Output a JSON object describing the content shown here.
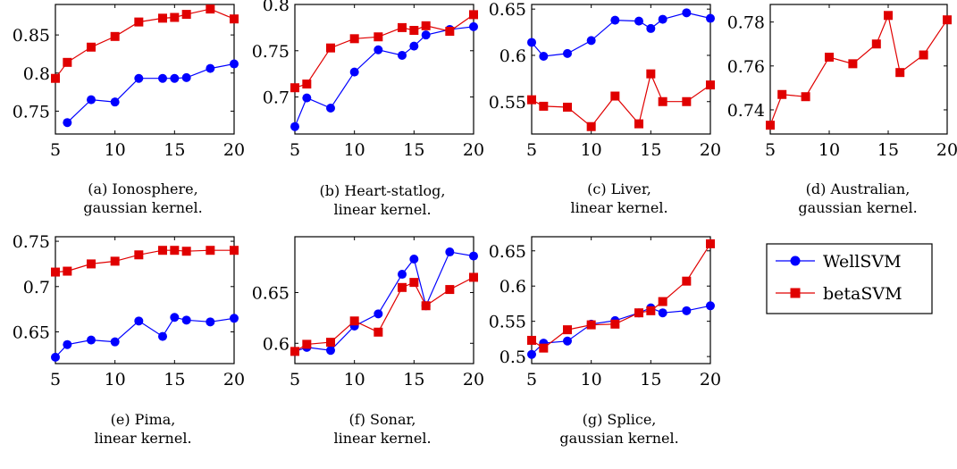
{
  "legend": [
    {
      "name": "WellSVM",
      "color": "#0000ff",
      "marker": "circle"
    },
    {
      "name": "betaSVM",
      "color": "#e00000",
      "marker": "square"
    }
  ],
  "chart_data": [
    {
      "type": "line",
      "caption": [
        "(a) Ionosphere,",
        "gaussian kernel."
      ],
      "xlim": [
        5,
        20
      ],
      "ylim": [
        0.72,
        0.89
      ],
      "xticks": [
        5,
        10,
        15,
        20
      ],
      "yticks": [
        0.75,
        0.8,
        0.85
      ],
      "xtick_labels": [
        "5",
        "10",
        "15",
        "20"
      ],
      "ytick_labels": [
        "0.75",
        "0.8",
        "0.85"
      ],
      "series": [
        {
          "name": "WellSVM",
          "x": [
            6,
            8,
            10,
            12,
            14,
            15,
            16,
            18,
            20
          ],
          "y": [
            0.735,
            0.765,
            0.762,
            0.793,
            0.793,
            0.793,
            0.794,
            0.806,
            0.812
          ]
        },
        {
          "name": "betaSVM",
          "x": [
            5,
            6,
            8,
            10,
            12,
            14,
            15,
            16,
            18,
            20
          ],
          "y": [
            0.793,
            0.814,
            0.834,
            0.848,
            0.867,
            0.872,
            0.873,
            0.877,
            0.884,
            0.871
          ]
        }
      ]
    },
    {
      "type": "line",
      "caption": [
        "(b) Heart-statlog,",
        "linear kernel."
      ],
      "xlim": [
        5,
        20
      ],
      "ylim": [
        0.66,
        0.8
      ],
      "xticks": [
        5,
        10,
        15,
        20
      ],
      "yticks": [
        0.7,
        0.75,
        0.8
      ],
      "xtick_labels": [
        "5",
        "10",
        "15",
        "20"
      ],
      "ytick_labels": [
        "0.7",
        "0.75",
        "0.8"
      ],
      "series": [
        {
          "name": "WellSVM",
          "x": [
            5,
            6,
            8,
            10,
            12,
            14,
            15,
            16,
            18,
            20
          ],
          "y": [
            0.668,
            0.699,
            0.688,
            0.727,
            0.751,
            0.745,
            0.755,
            0.767,
            0.773,
            0.776
          ]
        },
        {
          "name": "betaSVM",
          "x": [
            5,
            6,
            8,
            10,
            12,
            14,
            15,
            16,
            18,
            20
          ],
          "y": [
            0.71,
            0.714,
            0.753,
            0.763,
            0.765,
            0.775,
            0.772,
            0.777,
            0.771,
            0.789
          ]
        }
      ]
    },
    {
      "type": "line",
      "caption": [
        "(c) Liver,",
        "linear kernel."
      ],
      "xlim": [
        5,
        20
      ],
      "ylim": [
        0.515,
        0.655
      ],
      "xticks": [
        5,
        10,
        15,
        20
      ],
      "yticks": [
        0.55,
        0.6,
        0.65
      ],
      "xtick_labels": [
        "5",
        "10",
        "15",
        "20"
      ],
      "ytick_labels": [
        "0.55",
        "0.6",
        "0.65"
      ],
      "series": [
        {
          "name": "WellSVM",
          "x": [
            5,
            6,
            8,
            10,
            12,
            14,
            15,
            16,
            18,
            20
          ],
          "y": [
            0.614,
            0.599,
            0.602,
            0.616,
            0.638,
            0.637,
            0.629,
            0.639,
            0.646,
            0.64
          ]
        },
        {
          "name": "betaSVM",
          "x": [
            5,
            6,
            8,
            10,
            12,
            14,
            15,
            16,
            18,
            20
          ],
          "y": [
            0.552,
            0.545,
            0.544,
            0.523,
            0.556,
            0.526,
            0.58,
            0.55,
            0.55,
            0.568
          ]
        }
      ]
    },
    {
      "type": "line",
      "caption": [
        "(d) Australian,",
        "gaussian kernel."
      ],
      "xlim": [
        5,
        20
      ],
      "ylim": [
        0.729,
        0.788
      ],
      "xticks": [
        5,
        10,
        15,
        20
      ],
      "yticks": [
        0.74,
        0.76,
        0.78
      ],
      "xtick_labels": [
        "5",
        "10",
        "15",
        "20"
      ],
      "ytick_labels": [
        "0.74",
        "0.76",
        "0.78"
      ],
      "series": [
        {
          "name": "betaSVM",
          "x": [
            5,
            6,
            8,
            10,
            12,
            14,
            15,
            16,
            18,
            20
          ],
          "y": [
            0.733,
            0.747,
            0.746,
            0.764,
            0.761,
            0.77,
            0.783,
            0.757,
            0.765,
            0.781
          ]
        }
      ]
    },
    {
      "type": "line",
      "caption": [
        "(e) Pima,",
        "linear kernel."
      ],
      "xlim": [
        5,
        20
      ],
      "ylim": [
        0.615,
        0.755
      ],
      "xticks": [
        5,
        10,
        15,
        20
      ],
      "yticks": [
        0.65,
        0.7,
        0.75
      ],
      "xtick_labels": [
        "5",
        "10",
        "15",
        "20"
      ],
      "ytick_labels": [
        "0.65",
        "0.7",
        "0.75"
      ],
      "series": [
        {
          "name": "WellSVM",
          "x": [
            5,
            6,
            8,
            10,
            12,
            14,
            15,
            16,
            18,
            20
          ],
          "y": [
            0.622,
            0.636,
            0.641,
            0.639,
            0.662,
            0.645,
            0.666,
            0.663,
            0.661,
            0.665
          ]
        },
        {
          "name": "betaSVM",
          "x": [
            5,
            6,
            8,
            10,
            12,
            14,
            15,
            16,
            18,
            20
          ],
          "y": [
            0.716,
            0.717,
            0.725,
            0.728,
            0.735,
            0.74,
            0.74,
            0.739,
            0.74,
            0.74
          ]
        }
      ]
    },
    {
      "type": "line",
      "caption": [
        "(f) Sonar,",
        "linear kernel."
      ],
      "xlim": [
        5,
        20
      ],
      "ylim": [
        0.58,
        0.705
      ],
      "xticks": [
        5,
        10,
        15,
        20
      ],
      "yticks": [
        0.6,
        0.65
      ],
      "xtick_labels": [
        "5",
        "10",
        "15",
        "20"
      ],
      "ytick_labels": [
        "0.6",
        "0.65"
      ],
      "series": [
        {
          "name": "WellSVM",
          "x": [
            5,
            6,
            8,
            10,
            12,
            14,
            15,
            16,
            18,
            20
          ],
          "y": [
            0.592,
            0.596,
            0.593,
            0.617,
            0.629,
            0.668,
            0.683,
            0.637,
            0.69,
            0.686
          ]
        },
        {
          "name": "betaSVM",
          "x": [
            5,
            6,
            8,
            10,
            12,
            14,
            15,
            16,
            18,
            20
          ],
          "y": [
            0.592,
            0.599,
            0.601,
            0.622,
            0.611,
            0.655,
            0.66,
            0.637,
            0.653,
            0.665
          ]
        }
      ]
    },
    {
      "type": "line",
      "caption": [
        "(g) Splice,",
        "gaussian kernel."
      ],
      "xlim": [
        5,
        20
      ],
      "ylim": [
        0.49,
        0.67
      ],
      "xticks": [
        5,
        10,
        15,
        20
      ],
      "yticks": [
        0.5,
        0.55,
        0.6,
        0.65
      ],
      "xtick_labels": [
        "5",
        "10",
        "15",
        "20"
      ],
      "ytick_labels": [
        "0.5",
        "0.55",
        "0.6",
        "0.65"
      ],
      "series": [
        {
          "name": "WellSVM",
          "x": [
            5,
            6,
            8,
            10,
            12,
            14,
            15,
            16,
            18,
            20
          ],
          "y": [
            0.503,
            0.519,
            0.522,
            0.546,
            0.551,
            0.562,
            0.569,
            0.562,
            0.565,
            0.572
          ]
        },
        {
          "name": "betaSVM",
          "x": [
            5,
            6,
            8,
            10,
            12,
            14,
            15,
            16,
            18,
            20
          ],
          "y": [
            0.523,
            0.512,
            0.538,
            0.545,
            0.546,
            0.562,
            0.565,
            0.578,
            0.607,
            0.66
          ]
        }
      ]
    }
  ]
}
